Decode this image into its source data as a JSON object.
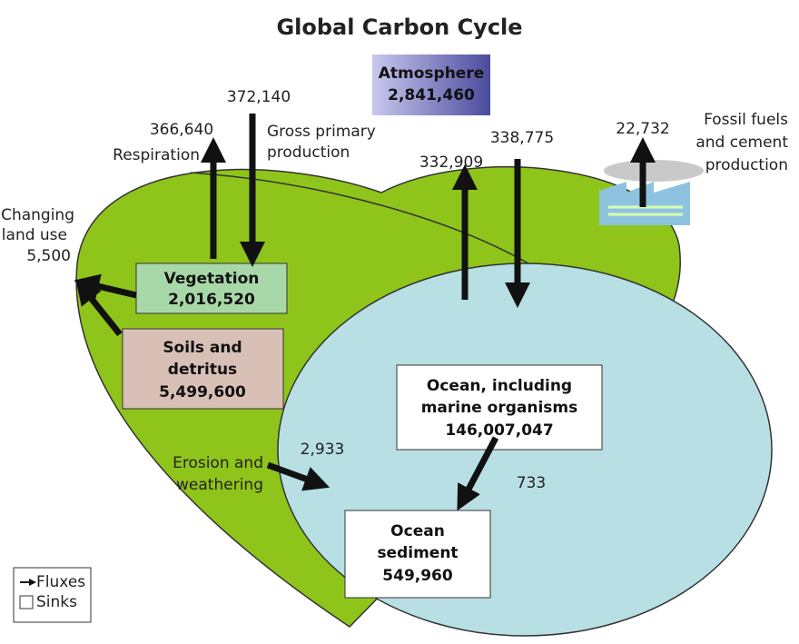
{
  "title": "Global Carbon Cycle",
  "sinks": [
    {
      "label": [
        "Atmosphere"
      ],
      "value": "2,841,460"
    },
    {
      "label": [
        "Vegetation"
      ],
      "value": "2,016,520"
    },
    {
      "label": [
        "Soils and",
        "detritus"
      ],
      "value": "5,499,600"
    },
    {
      "label": [
        "Ocean, including",
        "marine organisms"
      ],
      "value": "146,007,047"
    },
    {
      "label": [
        "Ocean",
        "sediment"
      ],
      "value": "549,960"
    }
  ],
  "fluxes": [
    {
      "value": "366,640",
      "label": [
        "Respiration"
      ]
    },
    {
      "value": "372,140",
      "label": [
        "Gross primary",
        "production"
      ]
    },
    {
      "value": "5,500",
      "label": [
        "Changing",
        "land use"
      ]
    },
    {
      "value": "332,909"
    },
    {
      "value": "338,775"
    },
    {
      "value": "22,732",
      "label": [
        "Fossil fuels",
        "and cement",
        "production"
      ]
    },
    {
      "value": "2,933",
      "label": [
        "Erosion and",
        "weathering"
      ]
    },
    {
      "value": "733"
    }
  ],
  "legend": [
    "Fluxes",
    "Sinks"
  ]
}
